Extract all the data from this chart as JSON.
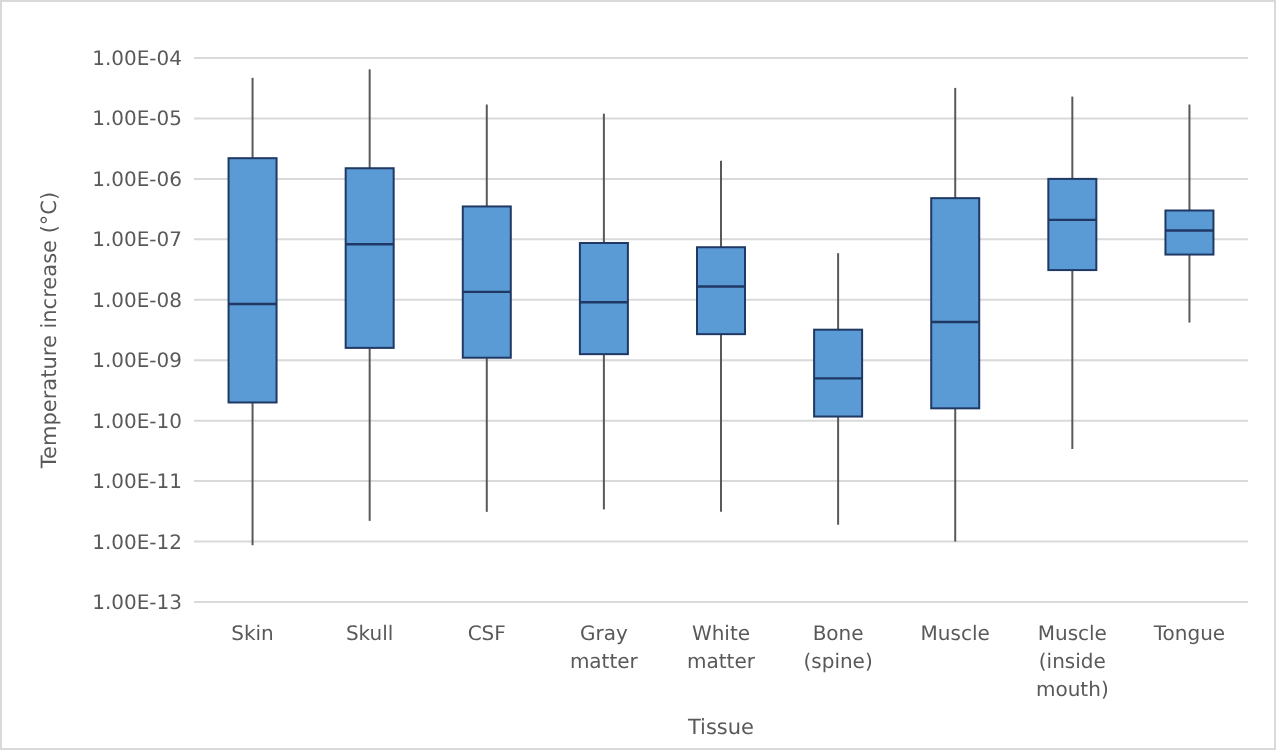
{
  "chart_data": {
    "type": "box",
    "xlabel": "Tissue",
    "ylabel": "Temperature  increase (°C)",
    "log": true,
    "grid": "y",
    "color": "#5b9bd5",
    "categories": [
      "Skin",
      "Skull",
      "CSF",
      "Gray matter",
      "White matter",
      "Bone (spine)",
      "Muscle",
      "Muscle (inside mouth)",
      "Tongue"
    ],
    "ylim": [
      1e-13,
      0.0001
    ],
    "yticks": [
      {
        "value": 1e-13,
        "label": "1.00E-13"
      },
      {
        "value": 1e-12,
        "label": "1.00E-12"
      },
      {
        "value": 1e-11,
        "label": "1.00E-11"
      },
      {
        "value": 1e-10,
        "label": "1.00E-10"
      },
      {
        "value": 1e-09,
        "label": "1.00E-09"
      },
      {
        "value": 1e-08,
        "label": "1.00E-08"
      },
      {
        "value": 1e-07,
        "label": "1.00E-07"
      },
      {
        "value": 1e-06,
        "label": "1.00E-06"
      },
      {
        "value": 1e-05,
        "label": "1.00E-05"
      },
      {
        "value": 0.0001,
        "label": "1.00E-04"
      }
    ],
    "boxes": [
      {
        "low": 8.7e-13,
        "q1": 2e-10,
        "median": 8.5e-09,
        "q3": 2.2e-06,
        "high": 4.7e-05
      },
      {
        "low": 2.2e-12,
        "q1": 1.6e-09,
        "median": 8.3e-08,
        "q3": 1.5e-06,
        "high": 6.5e-05
      },
      {
        "low": 3.1e-12,
        "q1": 1.1e-09,
        "median": 1.35e-08,
        "q3": 3.5e-07,
        "high": 1.7e-05
      },
      {
        "low": 3.4e-12,
        "q1": 1.26e-09,
        "median": 9.1e-09,
        "q3": 8.7e-08,
        "high": 1.2e-05
      },
      {
        "low": 3.1e-12,
        "q1": 2.7e-09,
        "median": 1.66e-08,
        "q3": 7.4e-08,
        "high": 2e-06
      },
      {
        "low": 1.9e-12,
        "q1": 1.17e-10,
        "median": 5e-10,
        "q3": 3.2e-09,
        "high": 5.9e-08
      },
      {
        "low": 1e-12,
        "q1": 1.6e-10,
        "median": 4.3e-09,
        "q3": 4.8e-07,
        "high": 3.2e-05
      },
      {
        "low": 3.4e-11,
        "q1": 3.1e-08,
        "median": 2.1e-07,
        "q3": 1e-06,
        "high": 2.3e-05
      },
      {
        "low": 4.2e-09,
        "q1": 5.6e-08,
        "median": 1.4e-07,
        "q3": 3e-07,
        "high": 1.7e-05
      }
    ]
  }
}
